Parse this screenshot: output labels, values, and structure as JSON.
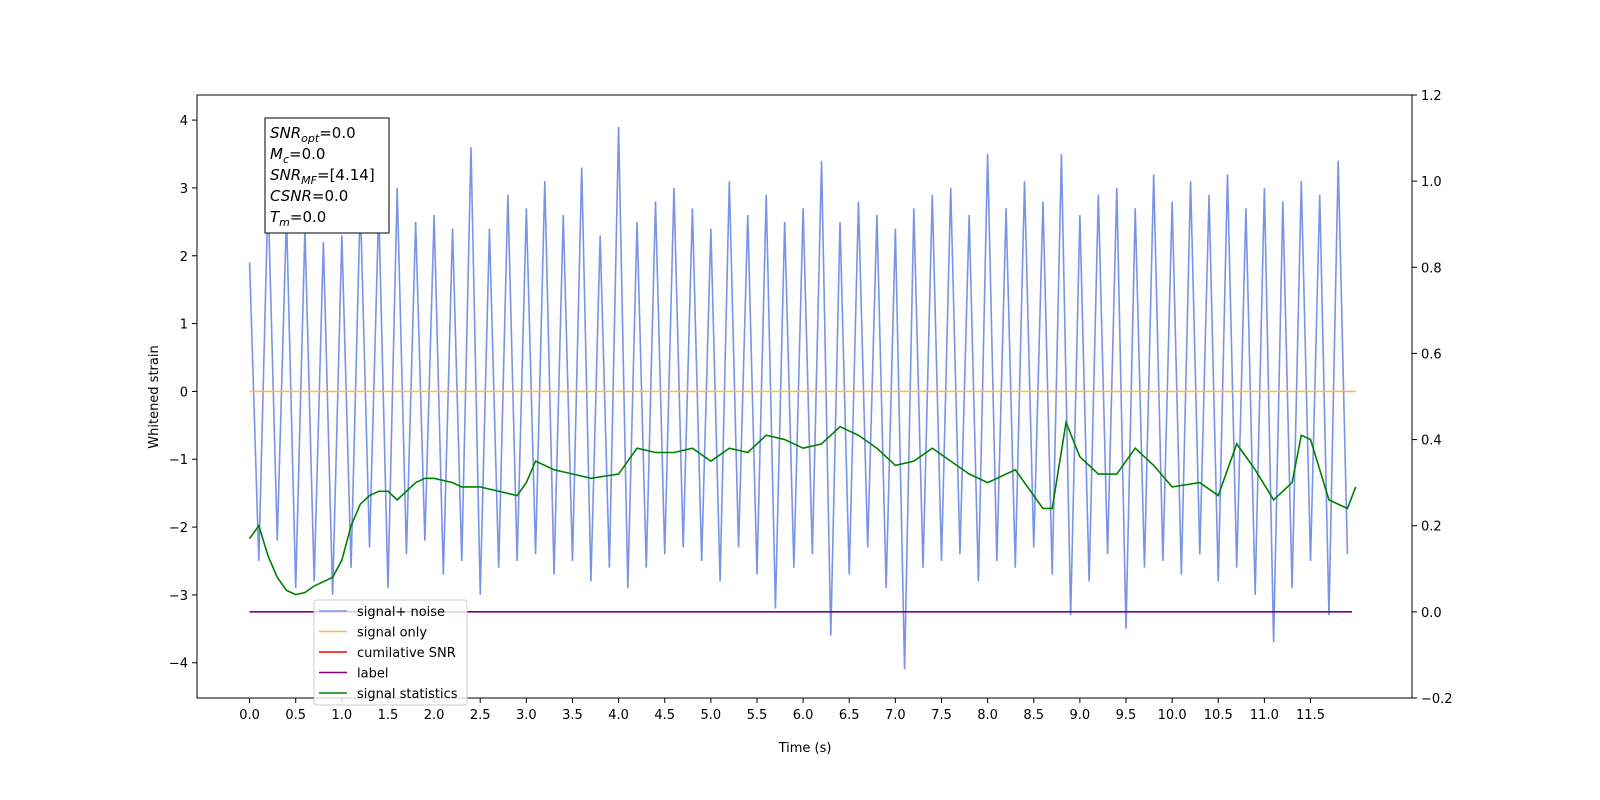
{
  "chart_data": {
    "type": "line",
    "xlabel": "Time (s)",
    "ylabel": "Whitened strain",
    "xlim": [
      -0.57,
      12.6
    ],
    "ylim": [
      -4.52,
      4.37
    ],
    "y2lim": [
      -0.2,
      1.2
    ],
    "xticks": [
      {
        "value": 0,
        "label": "0.0"
      },
      0.5,
      {
        "value": 1,
        "label": "1.0"
      },
      1.5,
      {
        "value": 2,
        "label": "2.0"
      },
      2.5,
      {
        "value": 3,
        "label": "3.0"
      },
      3.5,
      {
        "value": 4,
        "label": "4.0"
      },
      4.5,
      {
        "value": 5,
        "label": "5.0"
      },
      5.5,
      {
        "value": 6,
        "label": "6.0"
      },
      6.5,
      {
        "value": 7,
        "label": "7.0"
      },
      7.5,
      {
        "value": 8,
        "label": "8.0"
      },
      8.5,
      {
        "value": 9,
        "label": "9.0"
      },
      9.5,
      {
        "value": 10,
        "label": "10.0"
      },
      10.5,
      {
        "value": 11,
        "label": "11.0"
      },
      11.5
    ],
    "yticks": [
      {
        "value": -4,
        "label": "−4"
      },
      {
        "value": -3,
        "label": "−3"
      },
      {
        "value": -2,
        "label": "−2"
      },
      {
        "value": -1,
        "label": "−1"
      },
      0,
      1,
      2,
      3,
      4
    ],
    "y2ticks": [
      {
        "value": -0.2,
        "label": "−0.2"
      },
      {
        "value": 0,
        "label": "0.0"
      },
      0.2,
      0.4,
      0.6,
      0.8,
      {
        "value": 1,
        "label": "1.0"
      },
      1.2
    ],
    "grid": false,
    "legend": "lower left",
    "annotation": [
      {
        "main": "SNR",
        "sub": "opt",
        "value": "=0.0"
      },
      {
        "main": "M",
        "sub": "c",
        "value": "=0.0"
      },
      {
        "main": "SNR",
        "sub": "MF",
        "value": "=[4.14]"
      },
      {
        "main": "CSNR",
        "sub": "",
        "value": "=0.0"
      },
      {
        "main": "T",
        "sub": "m",
        "value": "=0.0"
      }
    ],
    "series": [
      {
        "name": "signal+ noise",
        "color": "#7b93e6",
        "axis": "y",
        "x": [
          0.0,
          0.1,
          0.2,
          0.3,
          0.4,
          0.5,
          0.6,
          0.7,
          0.8,
          0.9,
          1.0,
          1.1,
          1.2,
          1.3,
          1.4,
          1.5,
          1.6,
          1.7,
          1.8,
          1.9,
          2.0,
          2.1,
          2.2,
          2.3,
          2.4,
          2.5,
          2.6,
          2.7,
          2.8,
          2.9,
          3.0,
          3.1,
          3.2,
          3.3,
          3.4,
          3.5,
          3.6,
          3.7,
          3.8,
          3.9,
          4.0,
          4.1,
          4.2,
          4.3,
          4.4,
          4.5,
          4.6,
          4.7,
          4.8,
          4.9,
          5.0,
          5.1,
          5.2,
          5.3,
          5.4,
          5.5,
          5.6,
          5.7,
          5.8,
          5.9,
          6.0,
          6.1,
          6.2,
          6.3,
          6.4,
          6.5,
          6.6,
          6.7,
          6.8,
          6.9,
          7.0,
          7.1,
          7.2,
          7.3,
          7.4,
          7.5,
          7.6,
          7.7,
          7.8,
          7.9,
          8.0,
          8.1,
          8.2,
          8.3,
          8.4,
          8.5,
          8.6,
          8.7,
          8.8,
          8.9,
          9.0,
          9.1,
          9.2,
          9.3,
          9.4,
          9.5,
          9.6,
          9.7,
          9.8,
          9.9,
          10.0,
          10.1,
          10.2,
          10.3,
          10.4,
          10.5,
          10.6,
          10.7,
          10.8,
          10.9,
          11.0,
          11.1,
          11.2,
          11.3,
          11.4,
          11.5,
          11.6,
          11.7,
          11.8,
          11.9
        ],
        "values": [
          1.9,
          -2.5,
          2.9,
          -2.2,
          2.6,
          -2.9,
          2.4,
          -2.8,
          2.2,
          -3.0,
          2.3,
          -2.6,
          2.8,
          -2.3,
          2.7,
          -2.9,
          3.0,
          -2.4,
          2.5,
          -2.2,
          2.6,
          -2.7,
          2.4,
          -2.5,
          3.6,
          -3.0,
          2.4,
          -2.6,
          2.9,
          -2.5,
          2.7,
          -2.4,
          3.1,
          -2.7,
          2.6,
          -2.5,
          3.3,
          -2.8,
          2.3,
          -2.6,
          3.9,
          -2.9,
          2.5,
          -2.6,
          2.8,
          -2.4,
          3.0,
          -2.3,
          2.7,
          -2.5,
          2.4,
          -2.8,
          3.1,
          -2.3,
          2.6,
          -2.7,
          2.9,
          -3.2,
          2.5,
          -2.6,
          2.7,
          -2.4,
          3.4,
          -3.6,
          2.5,
          -2.7,
          2.8,
          -2.3,
          2.6,
          -2.9,
          2.4,
          -4.1,
          2.7,
          -2.6,
          2.9,
          -2.5,
          3.0,
          -2.4,
          2.6,
          -2.8,
          3.5,
          -2.5,
          2.7,
          -2.6,
          3.1,
          -2.3,
          2.8,
          -2.7,
          3.5,
          -3.3,
          2.6,
          -2.8,
          2.9,
          -2.4,
          3.0,
          -3.5,
          2.7,
          -2.6,
          3.2,
          -2.5,
          2.8,
          -2.7,
          3.1,
          -2.4,
          2.9,
          -2.8,
          3.2,
          -2.6,
          2.7,
          -3.0,
          3.0,
          -3.7,
          2.8,
          -2.9,
          3.1,
          -2.5,
          2.9,
          -3.3,
          3.4,
          -2.4
        ]
      },
      {
        "name": "signal only",
        "color": "#ffb84d",
        "axis": "y",
        "x": [
          0.0,
          11.99
        ],
        "values": [
          0,
          0
        ]
      },
      {
        "name": "cumilative SNR",
        "color": "#ff0000",
        "axis": "y",
        "x": [],
        "values": []
      },
      {
        "name": "label",
        "color": "#800080",
        "axis": "y2",
        "x": [
          0.0,
          11.95
        ],
        "values": [
          0,
          0
        ]
      },
      {
        "name": "signal statistics",
        "color": "#008000",
        "axis": "y2",
        "x": [
          0.0,
          0.1,
          0.2,
          0.3,
          0.4,
          0.5,
          0.6,
          0.7,
          0.8,
          0.9,
          1.0,
          1.1,
          1.2,
          1.3,
          1.4,
          1.5,
          1.6,
          1.7,
          1.8,
          1.9,
          2.0,
          2.2,
          2.3,
          2.5,
          2.7,
          2.9,
          3.0,
          3.1,
          3.3,
          3.5,
          3.7,
          4.0,
          4.2,
          4.4,
          4.6,
          4.8,
          5.0,
          5.2,
          5.4,
          5.6,
          5.8,
          6.0,
          6.2,
          6.4,
          6.6,
          6.8,
          7.0,
          7.2,
          7.4,
          7.6,
          7.8,
          8.0,
          8.3,
          8.6,
          8.7,
          8.85,
          9.0,
          9.2,
          9.4,
          9.6,
          9.8,
          10.0,
          10.3,
          10.5,
          10.7,
          10.9,
          11.1,
          11.3,
          11.4,
          11.5,
          11.7,
          11.9,
          11.99
        ],
        "values": [
          0.17,
          0.2,
          0.13,
          0.08,
          0.05,
          0.04,
          0.045,
          0.06,
          0.07,
          0.08,
          0.12,
          0.2,
          0.25,
          0.27,
          0.28,
          0.28,
          0.26,
          0.28,
          0.3,
          0.31,
          0.31,
          0.3,
          0.29,
          0.29,
          0.28,
          0.27,
          0.3,
          0.35,
          0.33,
          0.32,
          0.31,
          0.32,
          0.38,
          0.37,
          0.37,
          0.38,
          0.35,
          0.38,
          0.37,
          0.41,
          0.4,
          0.38,
          0.39,
          0.43,
          0.41,
          0.38,
          0.34,
          0.35,
          0.38,
          0.35,
          0.32,
          0.3,
          0.33,
          0.24,
          0.24,
          0.44,
          0.36,
          0.32,
          0.32,
          0.38,
          0.34,
          0.29,
          0.3,
          0.27,
          0.39,
          0.33,
          0.26,
          0.3,
          0.41,
          0.4,
          0.26,
          0.24,
          0.29
        ]
      }
    ]
  }
}
